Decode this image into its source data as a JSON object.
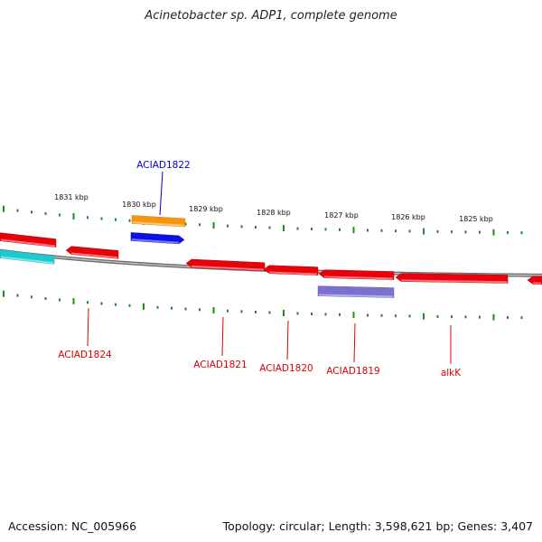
{
  "title": "Acinetobacter sp. ADP1, complete genome",
  "footer": {
    "accession": "Accession: NC_005966",
    "summary": "Topology: circular; Length: 3,598,621 bp; Genes: 3,407"
  },
  "colors": {
    "backbone": "#8a8a8a",
    "tick": "#1e8c1e",
    "gene_red": "#e8000a",
    "gene_orange": "#f5960a",
    "gene_blue": "#0a10e6",
    "gene_cyan": "#1ecad2",
    "gene_purple": "#7a70d0",
    "label_red": "#dd0000",
    "label_blue": "#0000cc"
  },
  "ruler_labels": [
    "1831 kbp",
    "1830 kbp",
    "1829 kbp",
    "1828 kbp",
    "1827 kbp",
    "1826 kbp",
    "1825 kbp"
  ],
  "gene_labels": [
    {
      "text": "ACIAD1822",
      "color": "blue"
    },
    {
      "text": "ACIAD1824",
      "color": "red"
    },
    {
      "text": "ACIAD1821",
      "color": "red"
    },
    {
      "text": "ACIAD1820",
      "color": "red"
    },
    {
      "text": "ACIAD1819",
      "color": "red"
    },
    {
      "text": "alkK",
      "color": "red"
    }
  ]
}
